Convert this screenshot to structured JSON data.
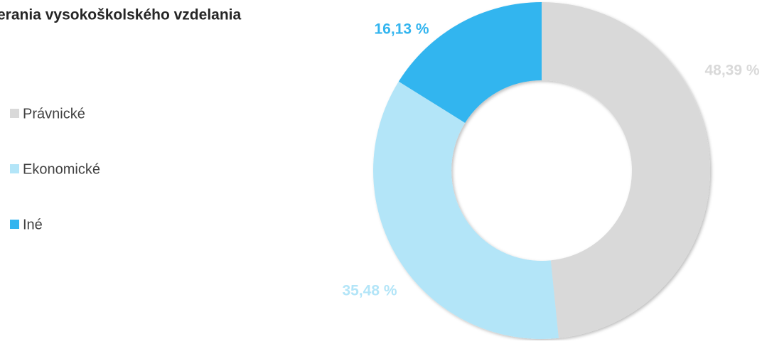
{
  "chart_data": {
    "type": "donut",
    "title": "erania vysokoškolského vzdelania",
    "categories": [
      "Právnické",
      "Ekonomické",
      "Iné"
    ],
    "values": [
      48.39,
      35.48,
      16.13
    ],
    "value_labels": [
      "48,39 %",
      "35,48 %",
      "16,13 %"
    ],
    "colors": [
      "#d9d9d9",
      "#b3e5f8",
      "#33b5ef"
    ],
    "legend": "left"
  }
}
